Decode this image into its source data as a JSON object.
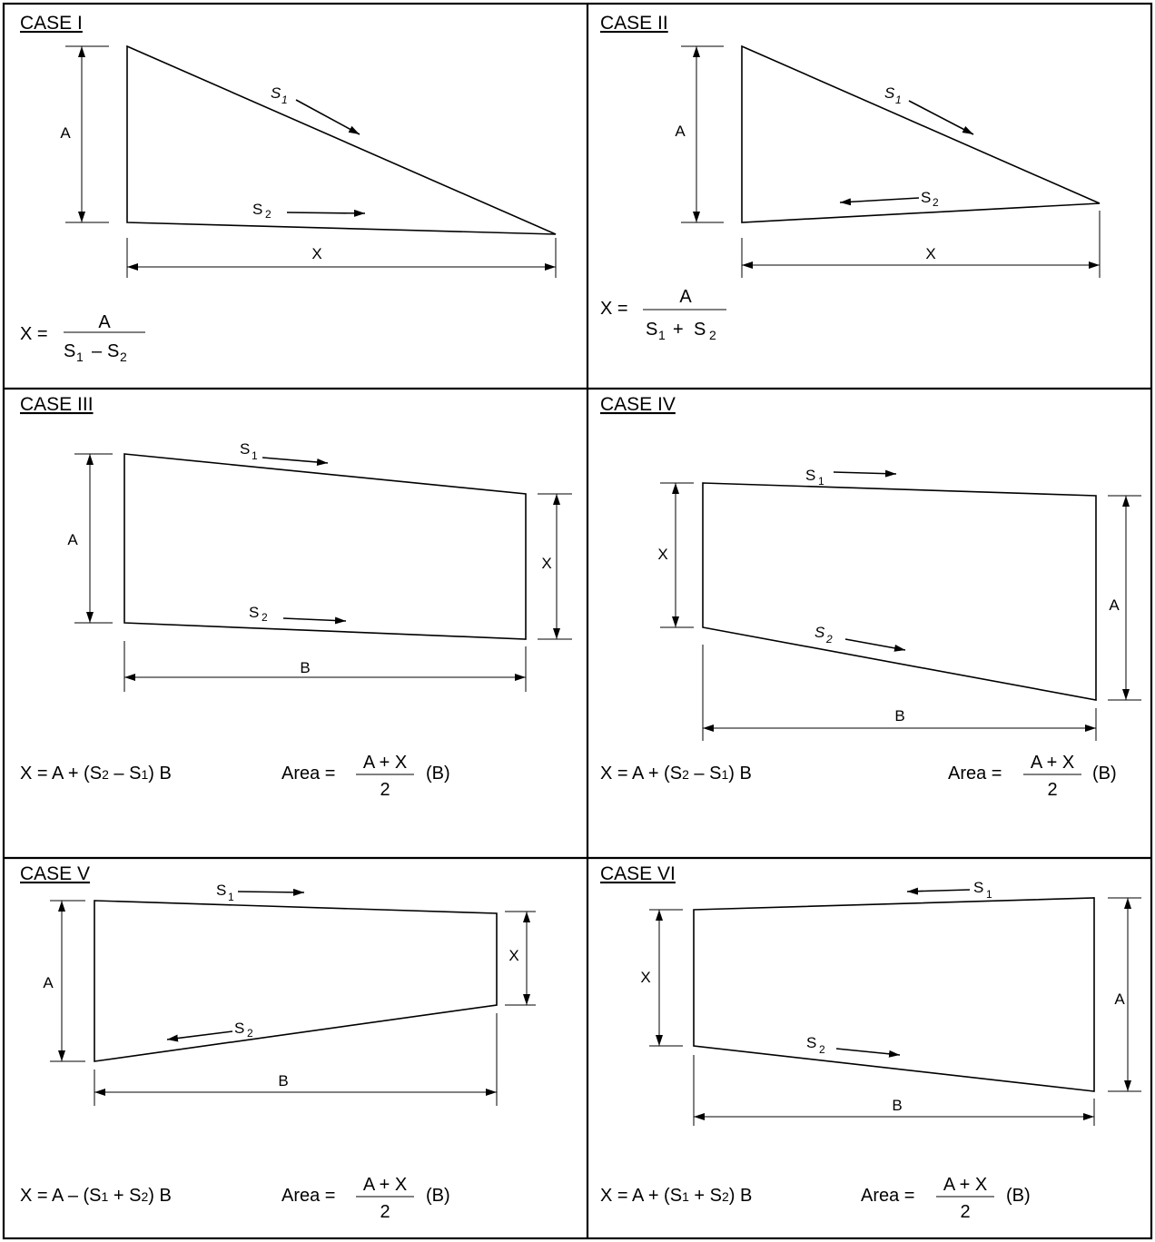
{
  "cases": [
    {
      "title": "CASE I",
      "labels": {
        "A": "A",
        "X": "X",
        "S1": "S",
        "S1_sub": "1",
        "S2": "S",
        "S2_sub": "2"
      },
      "formula": {
        "lhs": "X =",
        "num": "A",
        "den": "S",
        "den_sub1": "1",
        "den_op": "–",
        "den_s2": "S",
        "den_sub2": "2"
      }
    },
    {
      "title": "CASE II",
      "labels": {
        "A": "A",
        "X": "X",
        "S1": "S",
        "S1_sub": "1",
        "S2": "S",
        "S2_sub": "2"
      },
      "formula": {
        "lhs": "X =",
        "num": "A",
        "den": "S",
        "den_sub1": "1",
        "den_op": "+",
        "den_s2": "S",
        "den_sub2": "2"
      }
    },
    {
      "title": "CASE III",
      "labels": {
        "A": "A",
        "X": "X",
        "B": "B",
        "S1": "S",
        "S1_sub": "1",
        "S2": "S",
        "S2_sub": "2"
      },
      "formula": {
        "x_eq": "X = A + (S",
        "sub_a": "2",
        "mid": " – S",
        "sub_b": "1",
        "tail": ") B"
      },
      "area": {
        "label": "Area =",
        "num": "A + X",
        "den": "2",
        "tail": "(B)"
      }
    },
    {
      "title": "CASE IV",
      "labels": {
        "A": "A",
        "X": "X",
        "B": "B",
        "S1": "S",
        "S1_sub": "1",
        "S2": "S",
        "S2_sub": "2"
      },
      "formula": {
        "x_eq": "X = A + (S",
        "sub_a": "2",
        "mid": " – S",
        "sub_b": "1",
        "tail": ") B"
      },
      "area": {
        "label": "Area =",
        "num": "A + X",
        "den": "2",
        "tail": "(B)"
      }
    },
    {
      "title": "CASE V",
      "labels": {
        "A": "A",
        "X": "X",
        "B": "B",
        "S1": "S",
        "S1_sub": "1",
        "S2": "S",
        "S2_sub": "2"
      },
      "formula": {
        "x_eq": "X = A – (S",
        "sub_a": "1",
        "mid": " + S",
        "sub_b": "2",
        "tail": ") B"
      },
      "area": {
        "label": "Area =",
        "num": "A + X",
        "den": "2",
        "tail": "(B)"
      }
    },
    {
      "title": "CASE VI",
      "labels": {
        "A": "A",
        "X": "X",
        "B": "B",
        "S1": "S",
        "S1_sub": "1",
        "S2": "S",
        "S2_sub": "2"
      },
      "formula": {
        "x_eq": "X = A + (S",
        "sub_a": "1",
        "mid": " + S",
        "sub_b": "2",
        "tail": ") B"
      },
      "area": {
        "label": "Area =",
        "num": "A + X",
        "den": "2",
        "tail": "(B)"
      }
    }
  ]
}
